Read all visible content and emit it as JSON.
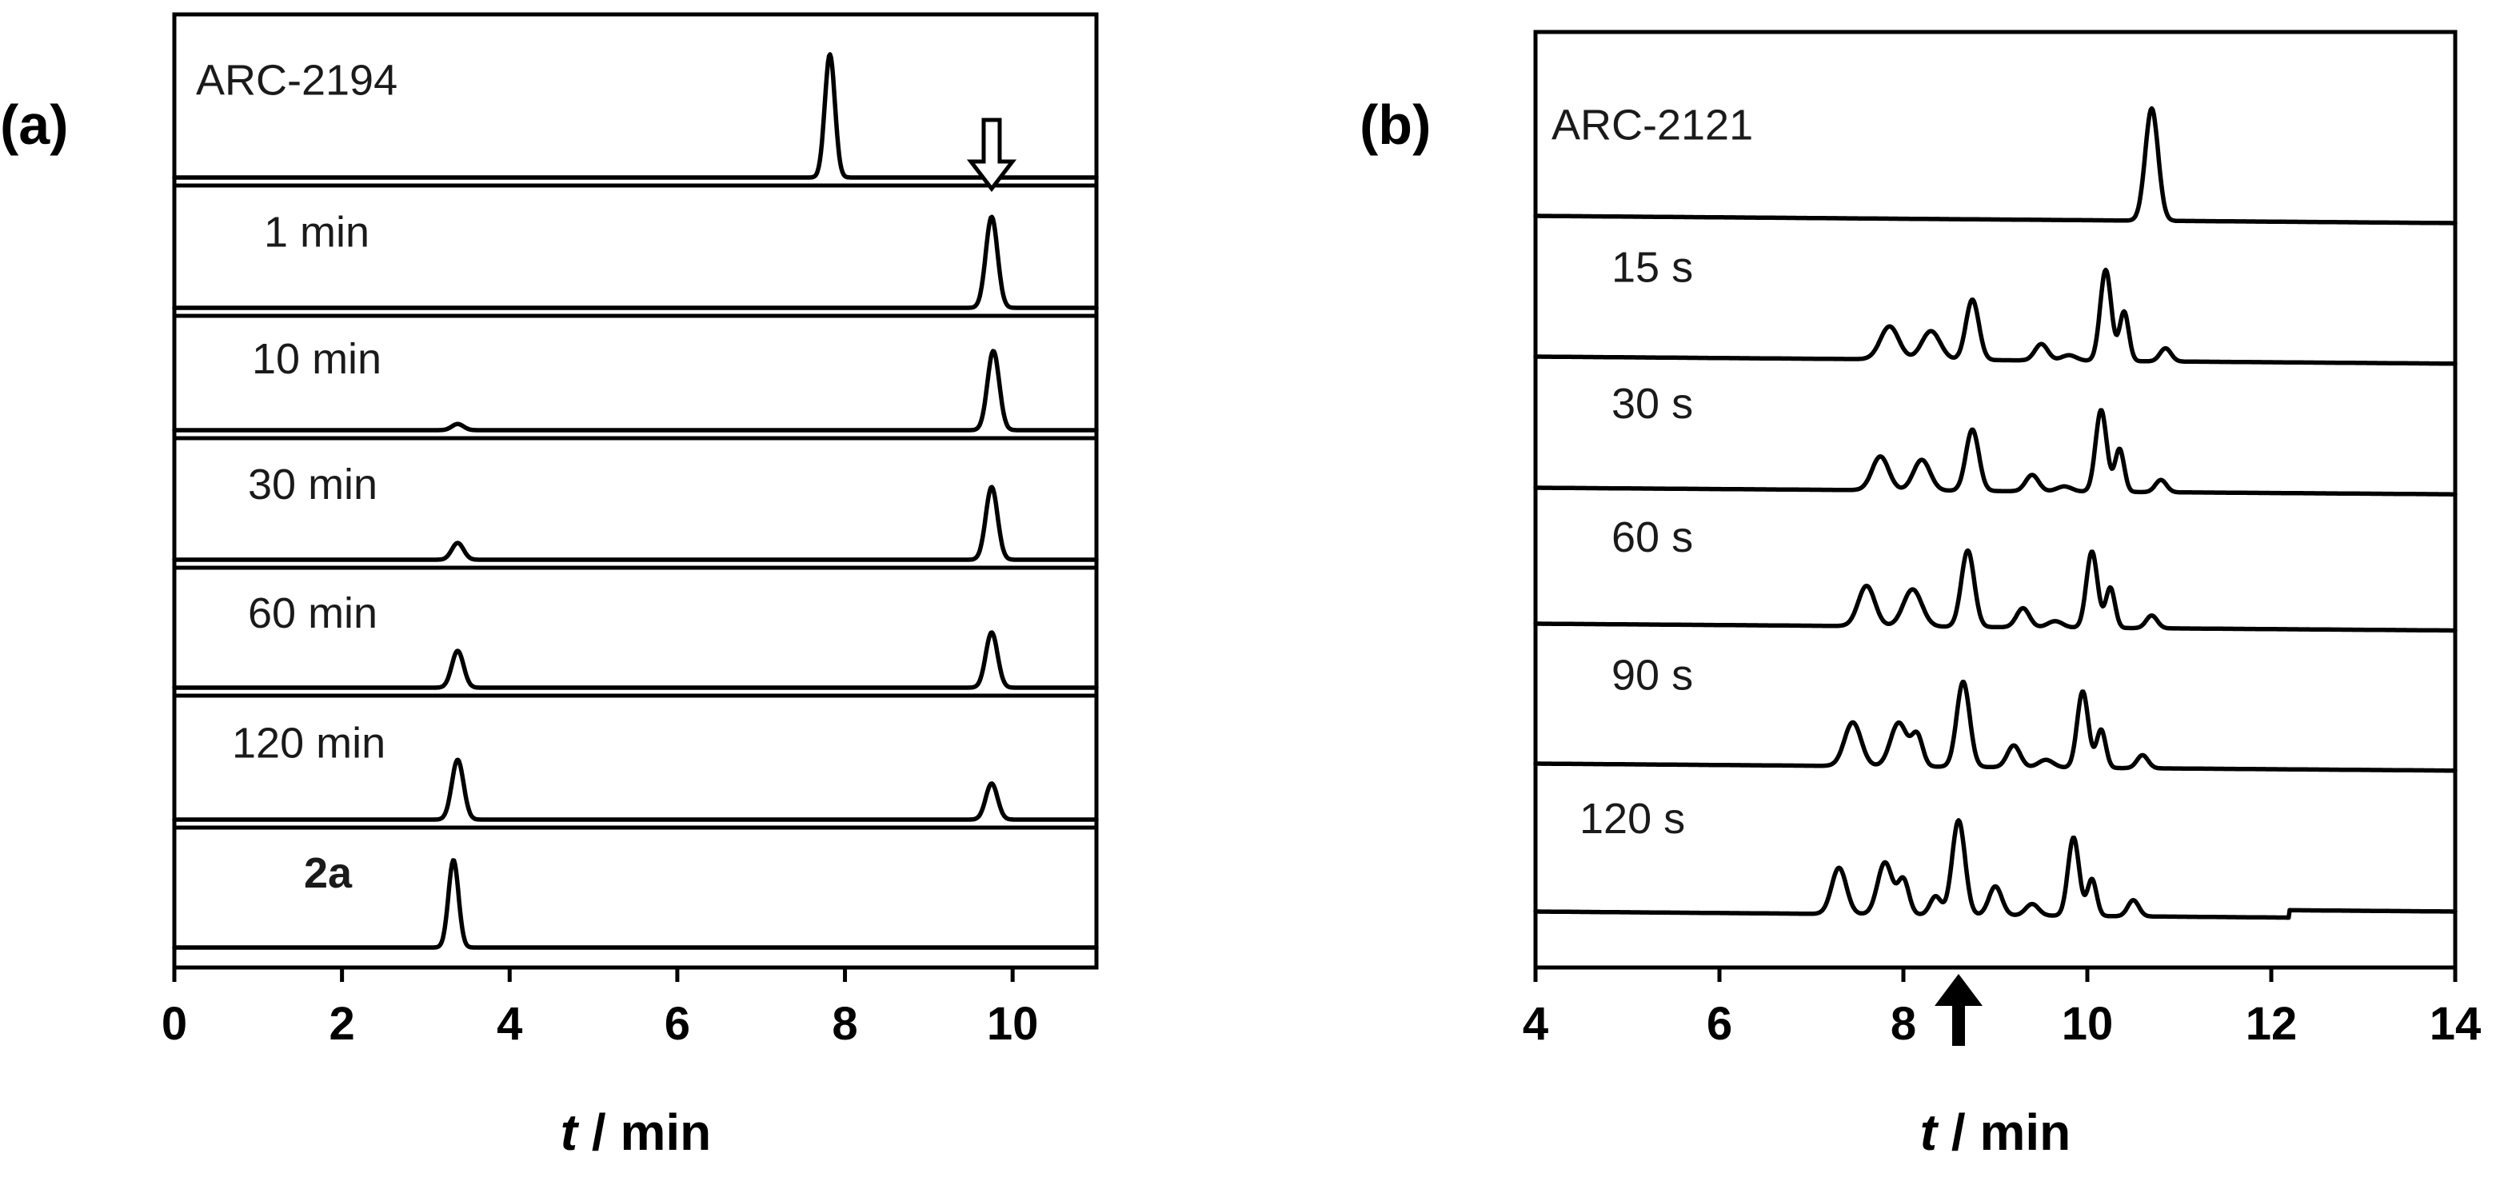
{
  "chart_data": [
    {
      "panel": "(a)",
      "type": "line",
      "xlabel_italic": "t",
      "xlabel_rest": " / min",
      "xlim": [
        0,
        11
      ],
      "xticks": [
        0,
        2,
        4,
        6,
        8,
        10
      ],
      "grid": false,
      "marker": {
        "kind": "open-arrow-down",
        "x": 9.75
      },
      "series": [
        {
          "name": "ARC-2194",
          "bold": false,
          "peaks": [
            {
              "x": 7.82,
              "h": 1.0,
              "w": 0.06
            }
          ]
        },
        {
          "name": "1 min",
          "bold": false,
          "peaks": [
            {
              "x": 9.75,
              "h": 0.97,
              "w": 0.07
            }
          ]
        },
        {
          "name": "10 min",
          "bold": false,
          "peaks": [
            {
              "x": 3.38,
              "h": 0.07,
              "w": 0.07
            },
            {
              "x": 9.77,
              "h": 0.9,
              "w": 0.07
            }
          ]
        },
        {
          "name": "30 min",
          "bold": false,
          "peaks": [
            {
              "x": 3.38,
              "h": 0.18,
              "w": 0.07
            },
            {
              "x": 9.75,
              "h": 0.78,
              "w": 0.07
            }
          ]
        },
        {
          "name": "60 min",
          "bold": false,
          "peaks": [
            {
              "x": 3.38,
              "h": 0.4,
              "w": 0.07
            },
            {
              "x": 9.75,
              "h": 0.6,
              "w": 0.07
            }
          ]
        },
        {
          "name": "120 min",
          "bold": false,
          "peaks": [
            {
              "x": 3.38,
              "h": 0.63,
              "w": 0.07
            },
            {
              "x": 9.75,
              "h": 0.38,
              "w": 0.07
            }
          ]
        },
        {
          "name": "2a",
          "bold": true,
          "peaks": [
            {
              "x": 3.33,
              "h": 0.95,
              "w": 0.06
            }
          ]
        }
      ]
    },
    {
      "panel": "(b)",
      "type": "line",
      "xlabel_italic": "t",
      "xlabel_rest": " / min",
      "xlim": [
        4,
        14
      ],
      "xticks": [
        4,
        6,
        8,
        10,
        12,
        14
      ],
      "grid": false,
      "marker": {
        "kind": "filled-arrow-up",
        "x": 8.6
      },
      "series": [
        {
          "name": "ARC-2121",
          "bold": false,
          "baseline_slope": 0.05,
          "peaks": [
            {
              "x": 10.7,
              "h": 1.0,
              "w": 0.07
            }
          ]
        },
        {
          "name": "15 s",
          "bold": false,
          "baseline_slope": 0.05,
          "peaks": [
            {
              "x": 7.85,
              "h": 0.3,
              "w": 0.1
            },
            {
              "x": 8.3,
              "h": 0.26,
              "w": 0.1
            },
            {
              "x": 8.75,
              "h": 0.55,
              "w": 0.07
            },
            {
              "x": 9.5,
              "h": 0.15,
              "w": 0.07
            },
            {
              "x": 9.8,
              "h": 0.05,
              "w": 0.08
            },
            {
              "x": 10.2,
              "h": 0.83,
              "w": 0.06
            },
            {
              "x": 10.4,
              "h": 0.45,
              "w": 0.05
            },
            {
              "x": 10.85,
              "h": 0.12,
              "w": 0.06
            }
          ]
        },
        {
          "name": "30 s",
          "bold": false,
          "baseline_slope": 0.05,
          "peaks": [
            {
              "x": 7.75,
              "h": 0.33,
              "w": 0.09
            },
            {
              "x": 8.2,
              "h": 0.3,
              "w": 0.09
            },
            {
              "x": 8.75,
              "h": 0.6,
              "w": 0.07
            },
            {
              "x": 9.4,
              "h": 0.16,
              "w": 0.07
            },
            {
              "x": 9.75,
              "h": 0.05,
              "w": 0.08
            },
            {
              "x": 10.15,
              "h": 0.8,
              "w": 0.06
            },
            {
              "x": 10.35,
              "h": 0.42,
              "w": 0.05
            },
            {
              "x": 10.8,
              "h": 0.12,
              "w": 0.06
            }
          ]
        },
        {
          "name": "60 s",
          "bold": false,
          "baseline_slope": 0.05,
          "peaks": [
            {
              "x": 7.6,
              "h": 0.38,
              "w": 0.09
            },
            {
              "x": 8.1,
              "h": 0.35,
              "w": 0.1
            },
            {
              "x": 8.7,
              "h": 0.72,
              "w": 0.07
            },
            {
              "x": 9.3,
              "h": 0.18,
              "w": 0.07
            },
            {
              "x": 9.65,
              "h": 0.06,
              "w": 0.08
            },
            {
              "x": 10.05,
              "h": 0.72,
              "w": 0.06
            },
            {
              "x": 10.25,
              "h": 0.38,
              "w": 0.05
            },
            {
              "x": 10.7,
              "h": 0.12,
              "w": 0.06
            }
          ]
        },
        {
          "name": "90 s",
          "bold": false,
          "baseline_slope": 0.05,
          "peaks": [
            {
              "x": 7.45,
              "h": 0.4,
              "w": 0.09
            },
            {
              "x": 7.95,
              "h": 0.4,
              "w": 0.09
            },
            {
              "x": 8.15,
              "h": 0.28,
              "w": 0.06
            },
            {
              "x": 8.65,
              "h": 0.78,
              "w": 0.07
            },
            {
              "x": 9.2,
              "h": 0.2,
              "w": 0.07
            },
            {
              "x": 9.55,
              "h": 0.07,
              "w": 0.08
            },
            {
              "x": 9.95,
              "h": 0.7,
              "w": 0.06
            },
            {
              "x": 10.15,
              "h": 0.35,
              "w": 0.05
            },
            {
              "x": 10.6,
              "h": 0.12,
              "w": 0.06
            }
          ]
        },
        {
          "name": "120 s",
          "bold": false,
          "baseline_slope": 0.05,
          "step": {
            "x": 12.2,
            "dy": 0.05
          },
          "peaks": [
            {
              "x": 7.3,
              "h": 0.4,
              "w": 0.08
            },
            {
              "x": 7.8,
              "h": 0.45,
              "w": 0.08
            },
            {
              "x": 8.0,
              "h": 0.3,
              "w": 0.06
            },
            {
              "x": 8.35,
              "h": 0.16,
              "w": 0.06
            },
            {
              "x": 8.6,
              "h": 0.82,
              "w": 0.07
            },
            {
              "x": 9.0,
              "h": 0.25,
              "w": 0.07
            },
            {
              "x": 9.4,
              "h": 0.1,
              "w": 0.07
            },
            {
              "x": 9.85,
              "h": 0.68,
              "w": 0.06
            },
            {
              "x": 10.05,
              "h": 0.32,
              "w": 0.05
            },
            {
              "x": 10.5,
              "h": 0.14,
              "w": 0.06
            }
          ]
        }
      ]
    }
  ]
}
